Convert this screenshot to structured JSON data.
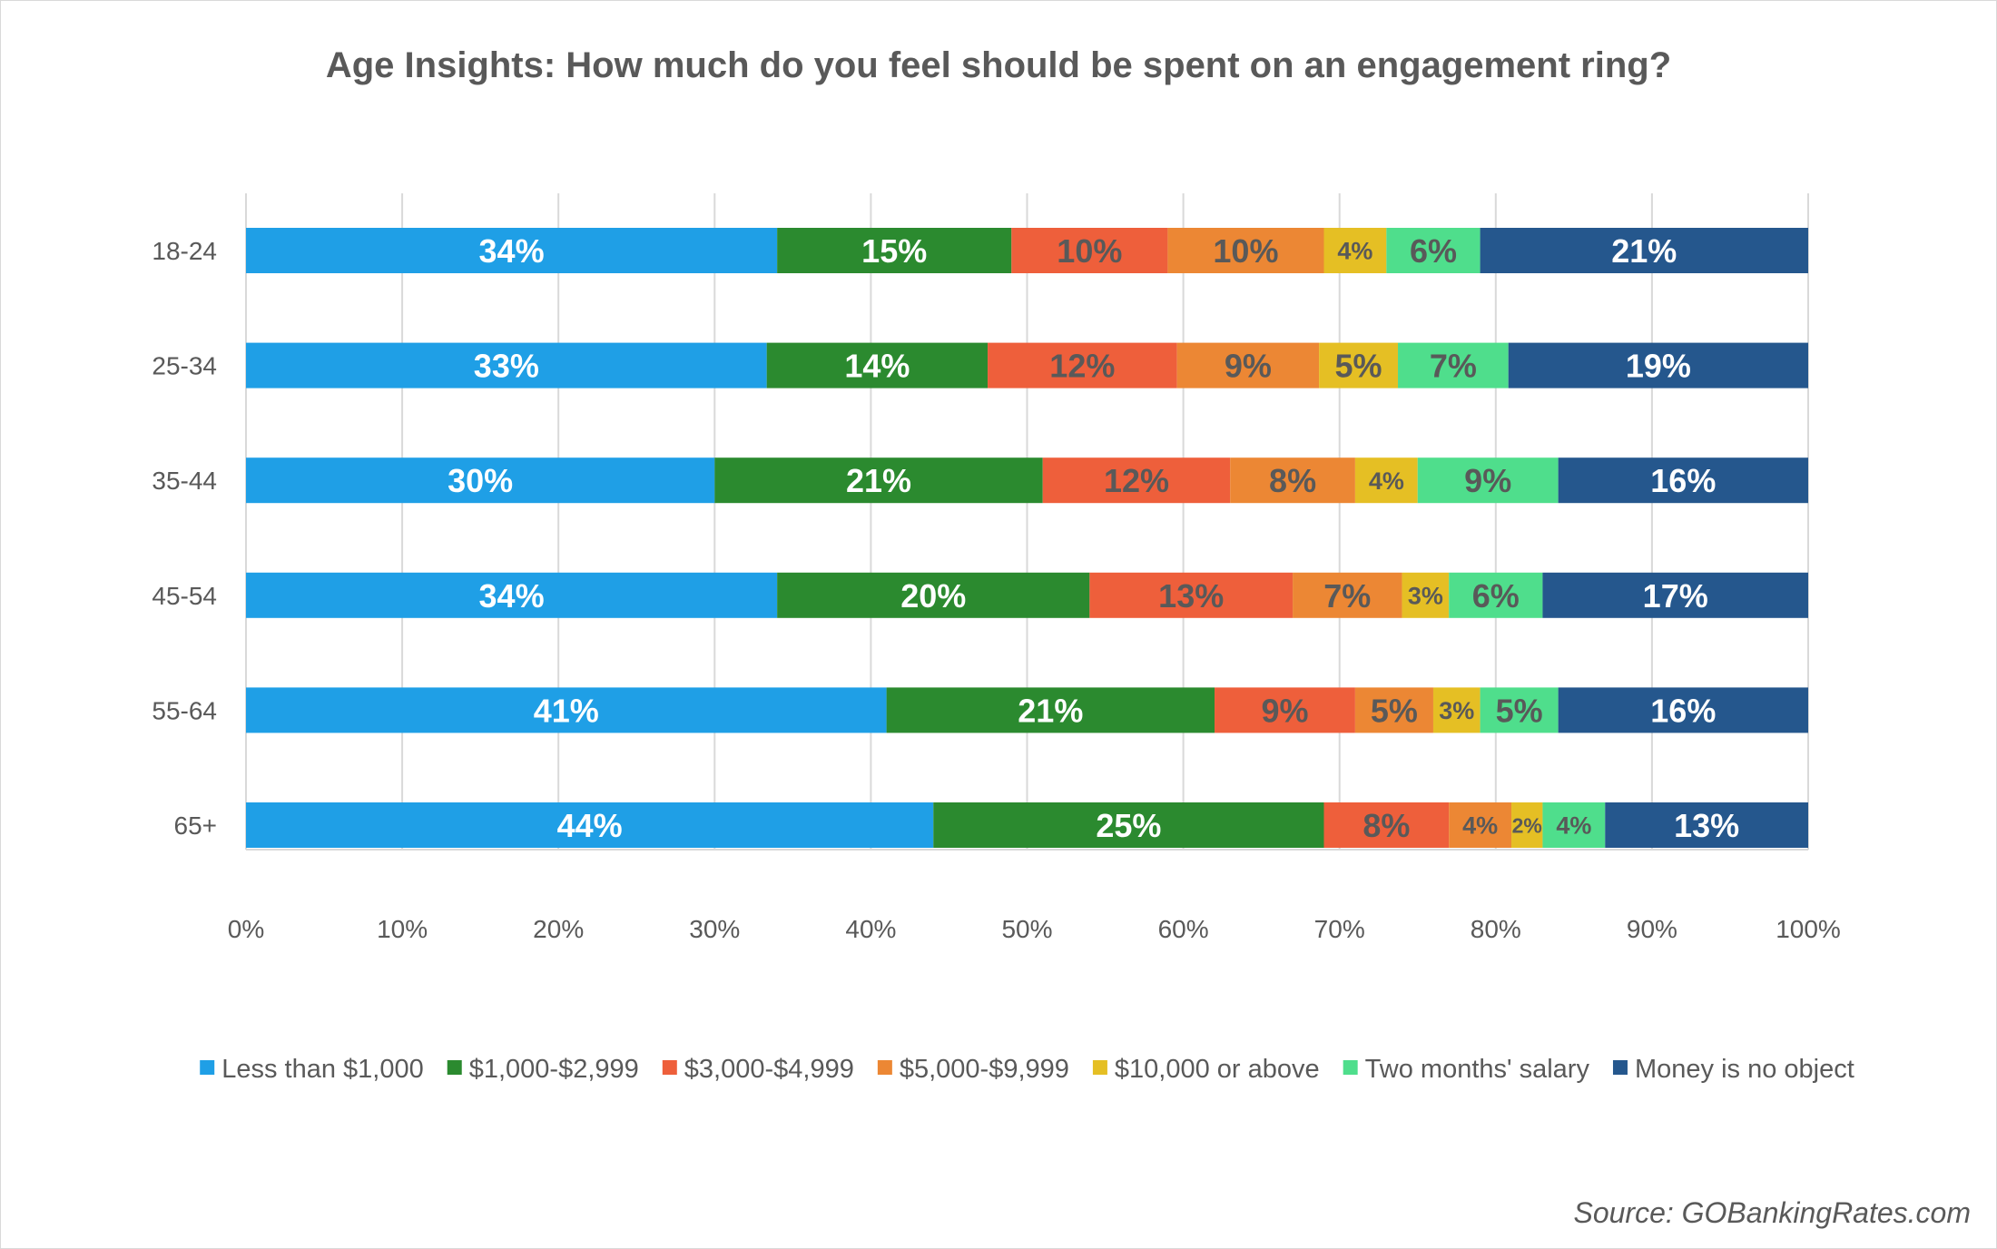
{
  "chart_data": {
    "type": "bar",
    "orientation": "horizontal",
    "stacked": "percent",
    "title": "Age Insights: How much do you feel should be spent on an engagement ring?",
    "categories": [
      "18-24",
      "25-34",
      "35-44",
      "45-54",
      "55-64",
      "65+"
    ],
    "series": [
      {
        "name": "Less than $1,000",
        "color": "#1f9fe6",
        "label_color": "#ffffff",
        "values": [
          34,
          33,
          30,
          34,
          41,
          44
        ]
      },
      {
        "name": "$1,000-$2,999",
        "color": "#2b8a2f",
        "label_color": "#ffffff",
        "values": [
          15,
          14,
          21,
          20,
          21,
          25
        ]
      },
      {
        "name": "$3,000-$4,999",
        "color": "#ee5f3b",
        "label_color": "#595959",
        "values": [
          10,
          12,
          12,
          13,
          9,
          8
        ]
      },
      {
        "name": "$5,000-$9,999",
        "color": "#ec8734",
        "label_color": "#595959",
        "values": [
          10,
          9,
          8,
          7,
          5,
          4
        ]
      },
      {
        "name": "$10,000 or above",
        "color": "#e5bf24",
        "label_color": "#595959",
        "values": [
          4,
          5,
          4,
          3,
          3,
          2
        ]
      },
      {
        "name": "Two months' salary",
        "color": "#4fde8c",
        "label_color": "#595959",
        "values": [
          6,
          7,
          9,
          6,
          5,
          4
        ]
      },
      {
        "name": "Money is no object",
        "color": "#25578d",
        "label_color": "#ffffff",
        "values": [
          21,
          19,
          16,
          17,
          16,
          13
        ]
      }
    ],
    "x_ticks": [
      "0%",
      "10%",
      "20%",
      "30%",
      "40%",
      "50%",
      "60%",
      "70%",
      "80%",
      "90%",
      "100%"
    ],
    "xlim": [
      0,
      100
    ],
    "grid": true,
    "legend_position": "bottom",
    "source": "Source: GOBankingRates.com"
  }
}
